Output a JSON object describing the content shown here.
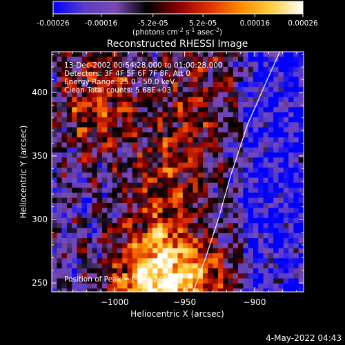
{
  "colorbar": {
    "tick_labels": [
      "-0.00026",
      "-0.00016",
      "-5.2e-05",
      "5.2e-05",
      "0.00016",
      "0.00026"
    ],
    "tick_values": [
      -0.00026,
      -0.00016,
      -5.2e-05,
      5.2e-05,
      0.00016,
      0.00026
    ],
    "range": [
      -0.00026,
      0.00026
    ],
    "units_prefix": "(photons cm",
    "units_exp1": "-2",
    "units_mid": " s",
    "units_exp2": "-1",
    "units_mid2": " asec",
    "units_exp3": "-2",
    "units_suffix": ")",
    "colormap": [
      "#0000ff",
      "#5a3cc8",
      "#7a4ab0",
      "#000000",
      "#8a0000",
      "#e03000",
      "#ff8a00",
      "#ffd040",
      "#ffffff"
    ]
  },
  "chart_data": {
    "type": "heatmap",
    "title": "Reconstructed RHESSI Image",
    "xlabel": "Heliocentric X (arcsec)",
    "ylabel": "Heliocentric Y (arcsec)",
    "xlim": [
      -1045,
      -865
    ],
    "ylim": [
      243,
      432
    ],
    "x_ticks": [
      -1000,
      -950,
      -900
    ],
    "x_tick_labels": [
      "−1000",
      "−950",
      "−900"
    ],
    "y_ticks": [
      250,
      300,
      350,
      400
    ],
    "y_tick_labels": [
      "250",
      "300",
      "350",
      "400"
    ],
    "limb_curve": [
      [
        -944,
        243
      ],
      [
        -935,
        270
      ],
      [
        -926,
        300
      ],
      [
        -917,
        335
      ],
      [
        -905,
        375
      ],
      [
        -891,
        410
      ],
      [
        -882,
        432
      ]
    ],
    "peak": [
      -944,
      240
    ],
    "annotations": [
      "13-Dec-2002 00:54:28.000 to 01:00:28.000",
      "Detectors: 3F 4F 5F 6F 7F 8F, Att 0",
      "Energy Range: 25.0 - 50.0 keV",
      "Clean     Total counts: 5.68E+03"
    ],
    "peak_label": "Position of Peak = [-944,240]"
  },
  "timestamp": "4-May-2022 04:43"
}
